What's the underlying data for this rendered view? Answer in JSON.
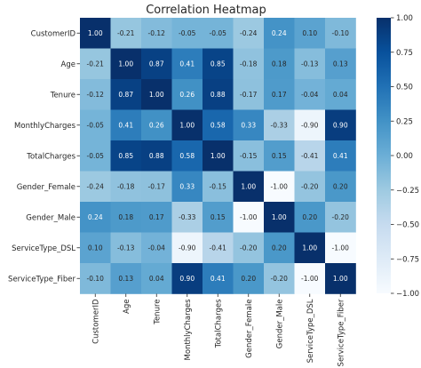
{
  "chart_data": {
    "type": "heatmap",
    "title": "Correlation Heatmap",
    "xlabel": "",
    "ylabel": "",
    "labels": [
      "CustomerID",
      "Age",
      "Tenure",
      "MonthlyCharges",
      "TotalCharges",
      "Gender_Female",
      "Gender_Male",
      "ServiceType_DSL",
      "ServiceType_Fiber"
    ],
    "matrix": [
      [
        1.0,
        -0.21,
        -0.12,
        -0.05,
        -0.05,
        -0.24,
        0.24,
        0.1,
        -0.1
      ],
      [
        -0.21,
        1.0,
        0.87,
        0.41,
        0.85,
        -0.18,
        0.18,
        -0.13,
        0.13
      ],
      [
        -0.12,
        0.87,
        1.0,
        0.26,
        0.88,
        -0.17,
        0.17,
        -0.04,
        0.04
      ],
      [
        -0.05,
        0.41,
        0.26,
        1.0,
        0.58,
        0.33,
        -0.33,
        -0.9,
        0.9
      ],
      [
        -0.05,
        0.85,
        0.88,
        0.58,
        1.0,
        -0.15,
        0.15,
        -0.41,
        0.41
      ],
      [
        -0.24,
        -0.18,
        -0.17,
        0.33,
        -0.15,
        1.0,
        -1.0,
        -0.2,
        0.2
      ],
      [
        0.24,
        0.18,
        0.17,
        -0.33,
        0.15,
        -1.0,
        1.0,
        0.2,
        -0.2
      ],
      [
        0.1,
        -0.13,
        -0.04,
        -0.9,
        -0.41,
        -0.2,
        0.2,
        1.0,
        -1.0
      ],
      [
        -0.1,
        0.13,
        0.04,
        0.9,
        0.41,
        0.2,
        -0.2,
        -1.0,
        1.0
      ]
    ],
    "colormap": "Blues",
    "vmin": -1.0,
    "vmax": 1.0,
    "colorbar_ticks": [
      "1.00",
      "0.75",
      "0.50",
      "0.25",
      "0.00",
      "−0.25",
      "−0.50",
      "−0.75",
      "−1.00"
    ],
    "colorbar_tick_values": [
      1.0,
      0.75,
      0.5,
      0.25,
      0.0,
      -0.25,
      -0.5,
      -0.75,
      -1.0
    ]
  }
}
